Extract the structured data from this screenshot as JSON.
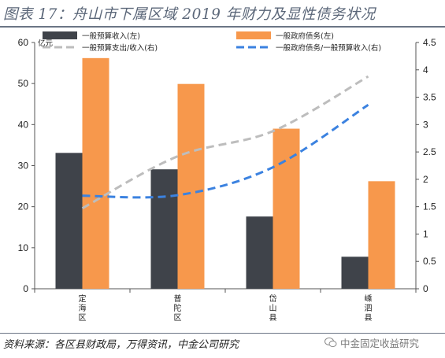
{
  "title": "图表 17：舟山市下属区域 2019 年财力及显性债务状况",
  "source": "资料来源：各区县财政局，万得资讯，中金公司研究",
  "watermark": "中金固定收益研究",
  "chart_data": {
    "type": "bar",
    "title": "舟山市下属区域 2019 年财力及显性债务状况",
    "categories": [
      "定海区",
      "普陀区",
      "岱山县",
      "嵊泗县"
    ],
    "y_left": {
      "unit": "亿元",
      "lim": [
        0,
        60
      ],
      "ticks": [
        "0",
        "10",
        "20",
        "30",
        "40",
        "50",
        "60"
      ]
    },
    "y_right": {
      "lim": [
        0,
        4.5
      ],
      "ticks": [
        "0",
        "0.5",
        "1",
        "1.5",
        "2",
        "2.5",
        "3",
        "3.5",
        "4",
        "4.5"
      ]
    },
    "series": [
      {
        "name": "一般预算收入(左)",
        "type": "bar",
        "axis": "left",
        "color": "#3f434a",
        "values": [
          33.1,
          29.1,
          17.6,
          7.8
        ]
      },
      {
        "name": "一般政府债务(左)",
        "type": "bar",
        "axis": "left",
        "color": "#f7984c",
        "values": [
          56.2,
          49.9,
          39.0,
          26.2
        ]
      },
      {
        "name": "一般预算支出/收入(右)",
        "type": "line",
        "style": "dashed",
        "axis": "right",
        "color": "#bdbdbd",
        "values": [
          1.47,
          2.42,
          2.88,
          3.88
        ]
      },
      {
        "name": "一般政府债务/一般预算收入(右)",
        "type": "line",
        "style": "dashed",
        "axis": "right",
        "color": "#3b82e0",
        "values": [
          1.7,
          1.71,
          2.22,
          3.36
        ]
      }
    ],
    "grid": false,
    "legend": "top"
  }
}
